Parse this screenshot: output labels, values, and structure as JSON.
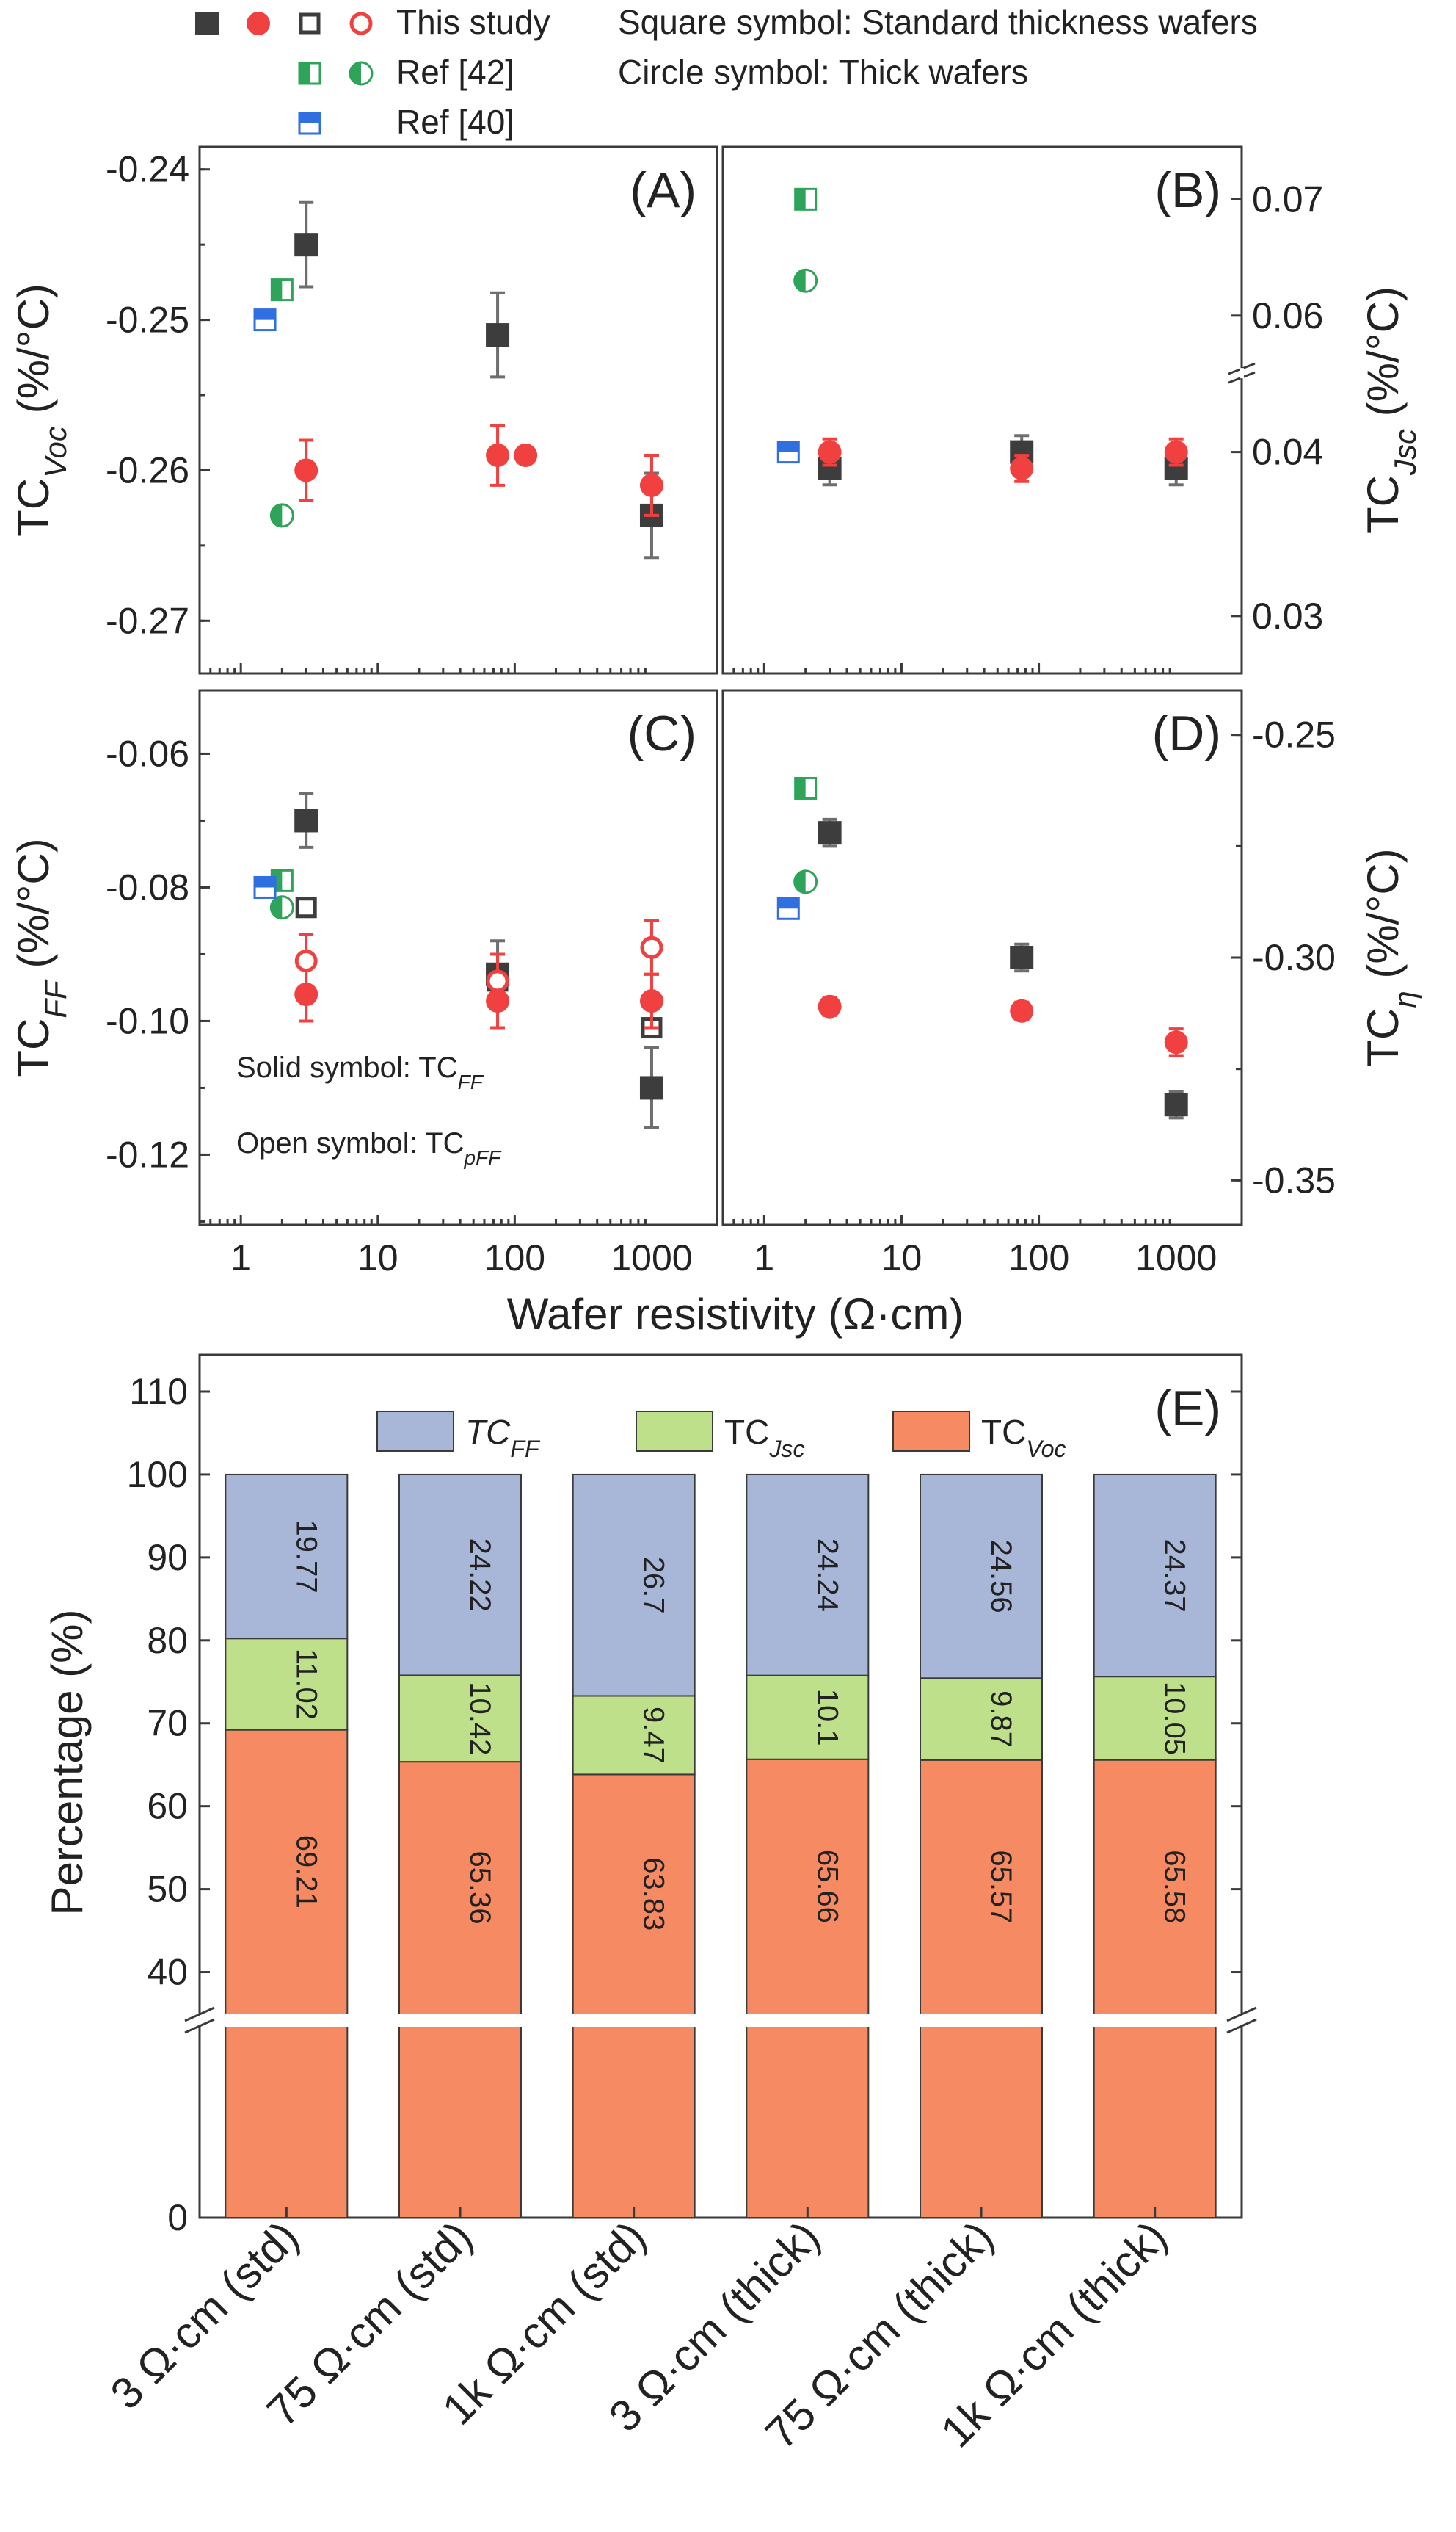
{
  "legend": {
    "this_study": "This study",
    "ref42": "Ref [42]",
    "ref40": "Ref [40]",
    "square_note": "Square symbol: Standard thickness wafers",
    "circle_note": "Circle symbol: Thick wafers",
    "solid_note": {
      "pre": "Solid symbol: TC",
      "sub": "FF"
    },
    "open_note": {
      "pre": "Open symbol: TC",
      "sub": "pFF"
    }
  },
  "colors": {
    "this_study_square": "#3d3d3d",
    "this_study_circle": "#f04040",
    "ref42": "#2ea35a",
    "ref40": "#2f6fe0",
    "bar_ff": "#a8b6d8",
    "bar_jsc": "#bfe08a",
    "bar_voc": "#f68a62"
  },
  "chart_data": [
    {
      "panel": "A",
      "label": "(A)",
      "type": "scatter",
      "ylabel": {
        "pre": "TC",
        "sub": "Voc",
        "post": " (%/°C)"
      },
      "y_side": "left",
      "x_scale": "log",
      "xlim": [
        0.5,
        3000
      ],
      "ylim": [
        -0.2735,
        -0.2385
      ],
      "yticks": [
        -0.27,
        -0.26,
        -0.25,
        -0.24
      ],
      "ytick_labels": [
        "-0.27",
        "-0.26",
        "-0.25",
        "-0.24"
      ],
      "series": [
        {
          "group": "this-study",
          "marker": "square",
          "fill": "solid",
          "points": [
            {
              "x": 3,
              "y": -0.245,
              "err": 0.0028
            },
            {
              "x": 75,
              "y": -0.251,
              "err": 0.0028
            },
            {
              "x": 1000,
              "y": -0.263,
              "err": 0.0028
            }
          ]
        },
        {
          "group": "this-study",
          "marker": "circle",
          "fill": "solid",
          "points": [
            {
              "x": 3,
              "y": -0.26,
              "err": 0.002
            },
            {
              "x": 75,
              "y": -0.259,
              "err": 0.002
            },
            {
              "x": 120,
              "y": -0.259,
              "err": 0
            },
            {
              "x": 1000,
              "y": -0.261,
              "err": 0.002
            }
          ]
        },
        {
          "group": "ref42",
          "marker": "square",
          "fill": "half-left",
          "points": [
            {
              "x": 2,
              "y": -0.248,
              "err": 0
            }
          ]
        },
        {
          "group": "ref42",
          "marker": "circle",
          "fill": "half-left",
          "points": [
            {
              "x": 2,
              "y": -0.263,
              "err": 0
            }
          ]
        },
        {
          "group": "ref40",
          "marker": "square",
          "fill": "half-top",
          "points": [
            {
              "x": 1.5,
              "y": -0.25,
              "err": 0
            }
          ]
        }
      ]
    },
    {
      "panel": "B",
      "label": "(B)",
      "type": "scatter",
      "ylabel": {
        "pre": "TC",
        "sub": "Jsc",
        "post": " (%/°C)"
      },
      "y_side": "right",
      "x_scale": "log",
      "xlim": [
        0.5,
        3000
      ],
      "y_break": true,
      "ylim": [
        0.0265,
        0.0745
      ],
      "yticks": [
        0.03,
        0.04,
        0.06,
        0.07
      ],
      "ytick_labels": [
        "0.03",
        "0.04",
        "0.06",
        "0.07"
      ],
      "series": [
        {
          "group": "this-study",
          "marker": "square",
          "fill": "solid",
          "points": [
            {
              "x": 3,
              "y": 0.039,
              "err": 0.001
            },
            {
              "x": 75,
              "y": 0.04,
              "err": 0.001
            },
            {
              "x": 1000,
              "y": 0.039,
              "err": 0.001
            }
          ]
        },
        {
          "group": "this-study",
          "marker": "circle",
          "fill": "solid",
          "points": [
            {
              "x": 3,
              "y": 0.04,
              "err": 0.0008
            },
            {
              "x": 75,
              "y": 0.039,
              "err": 0.0008
            },
            {
              "x": 1000,
              "y": 0.04,
              "err": 0.0008
            }
          ]
        },
        {
          "group": "ref42",
          "marker": "square",
          "fill": "half-left",
          "points": [
            {
              "x": 2,
              "y": 0.07,
              "err": 0
            }
          ]
        },
        {
          "group": "ref42",
          "marker": "circle",
          "fill": "half-left",
          "points": [
            {
              "x": 2,
              "y": 0.063,
              "err": 0
            }
          ]
        },
        {
          "group": "ref40",
          "marker": "square",
          "fill": "half-top",
          "points": [
            {
              "x": 1.5,
              "y": 0.04,
              "err": 0
            }
          ]
        }
      ]
    },
    {
      "panel": "C",
      "label": "(C)",
      "type": "scatter",
      "ylabel": {
        "pre": "TC",
        "sub": "FF",
        "post": " (%/°C)"
      },
      "y_side": "left",
      "x_scale": "log",
      "xlim": [
        0.5,
        3000
      ],
      "ylim": [
        -0.1305,
        -0.0505
      ],
      "yticks": [
        -0.12,
        -0.1,
        -0.08,
        -0.06
      ],
      "ytick_labels": [
        "-0.12",
        "-0.10",
        "-0.08",
        "-0.06"
      ],
      "series": [
        {
          "group": "this-study",
          "marker": "square",
          "fill": "solid",
          "points": [
            {
              "x": 3,
              "y": -0.07,
              "err": 0.004
            },
            {
              "x": 75,
              "y": -0.093,
              "err": 0.005
            },
            {
              "x": 1000,
              "y": -0.11,
              "err": 0.006
            }
          ]
        },
        {
          "group": "this-study",
          "marker": "square",
          "fill": "open",
          "points": [
            {
              "x": 3,
              "y": -0.083,
              "err": 0.001
            },
            {
              "x": 75,
              "y": -0.094,
              "err": 0.001
            },
            {
              "x": 1000,
              "y": -0.101,
              "err": 0.001
            }
          ]
        },
        {
          "group": "this-study",
          "marker": "circle",
          "fill": "solid",
          "points": [
            {
              "x": 3,
              "y": -0.096,
              "err": 0.004
            },
            {
              "x": 75,
              "y": -0.097,
              "err": 0.004
            },
            {
              "x": 1000,
              "y": -0.097,
              "err": 0.004
            }
          ]
        },
        {
          "group": "this-study",
          "marker": "circle",
          "fill": "open",
          "points": [
            {
              "x": 3,
              "y": -0.091,
              "err": 0.004
            },
            {
              "x": 75,
              "y": -0.094,
              "err": 0.004
            },
            {
              "x": 1000,
              "y": -0.089,
              "err": 0.004
            }
          ]
        },
        {
          "group": "ref42",
          "marker": "square",
          "fill": "half-left",
          "points": [
            {
              "x": 2,
              "y": -0.079,
              "err": 0
            }
          ]
        },
        {
          "group": "ref42",
          "marker": "circle",
          "fill": "half-left",
          "points": [
            {
              "x": 2,
              "y": -0.083,
              "err": 0
            }
          ]
        },
        {
          "group": "ref40",
          "marker": "square",
          "fill": "half-top",
          "points": [
            {
              "x": 1.5,
              "y": -0.08,
              "err": 0
            }
          ]
        }
      ]
    },
    {
      "panel": "D",
      "label": "(D)",
      "type": "scatter",
      "ylabel": {
        "pre": "TC",
        "sub": "η",
        "post": " (%/°C)"
      },
      "y_side": "right",
      "x_scale": "log",
      "xlim": [
        0.5,
        3000
      ],
      "ylim": [
        -0.36,
        -0.24
      ],
      "yticks": [
        -0.35,
        -0.3,
        -0.25
      ],
      "ytick_labels": [
        "-0.35",
        "-0.30",
        "-0.25"
      ],
      "series": [
        {
          "group": "this-study",
          "marker": "square",
          "fill": "solid",
          "points": [
            {
              "x": 3,
              "y": -0.272,
              "err": 0.003
            },
            {
              "x": 75,
              "y": -0.3,
              "err": 0.003
            },
            {
              "x": 1000,
              "y": -0.333,
              "err": 0.003
            }
          ]
        },
        {
          "group": "this-study",
          "marker": "circle",
          "fill": "solid",
          "points": [
            {
              "x": 3,
              "y": -0.311,
              "err": 0.002
            },
            {
              "x": 75,
              "y": -0.312,
              "err": 0.002
            },
            {
              "x": 1000,
              "y": -0.319,
              "err": 0.003
            }
          ]
        },
        {
          "group": "ref42",
          "marker": "square",
          "fill": "half-left",
          "points": [
            {
              "x": 2,
              "y": -0.262,
              "err": 0
            }
          ]
        },
        {
          "group": "ref42",
          "marker": "circle",
          "fill": "half-left",
          "points": [
            {
              "x": 2,
              "y": -0.283,
              "err": 0
            }
          ]
        },
        {
          "group": "ref40",
          "marker": "square",
          "fill": "half-top",
          "points": [
            {
              "x": 1.5,
              "y": -0.289,
              "err": 0
            }
          ]
        }
      ]
    },
    {
      "panel": "E",
      "label": "(E)",
      "type": "bar",
      "stacked": true,
      "y_break": true,
      "ylabel": "Percentage (%)",
      "ylim": [
        0,
        110
      ],
      "yticks": [
        0,
        40,
        50,
        60,
        70,
        80,
        90,
        100,
        110
      ],
      "ytick_labels": [
        "0",
        "40",
        "50",
        "60",
        "70",
        "80",
        "90",
        "100",
        "110"
      ],
      "categories": [
        "3 Ω·cm (std)",
        "75 Ω·cm (std)",
        "1k Ω·cm (std)",
        "3 Ω·cm (thick)",
        "75 Ω·cm (thick)",
        "1k Ω·cm (thick)"
      ],
      "series": [
        {
          "key": "voc",
          "name": {
            "pre": "TC",
            "sub": "Voc"
          },
          "values": [
            69.21,
            65.36,
            63.83,
            65.66,
            65.57,
            65.58
          ],
          "labels": [
            "69.21",
            "65.36",
            "63.83",
            "65.66",
            "65.57",
            "65.58"
          ]
        },
        {
          "key": "jsc",
          "name": {
            "pre": "TC",
            "sub": "Jsc"
          },
          "values": [
            11.02,
            10.42,
            9.47,
            10.1,
            9.87,
            10.05
          ],
          "labels": [
            "11.02",
            "10.42",
            "9.47",
            "10.1",
            "9.87",
            "10.05"
          ]
        },
        {
          "key": "ff",
          "name": {
            "pre": "TC",
            "sub": "FF"
          },
          "values": [
            19.77,
            24.22,
            26.7,
            24.24,
            24.56,
            24.37
          ],
          "labels": [
            "19.77",
            "24.22",
            "26.7",
            "24.24",
            "24.56",
            "24.37"
          ]
        }
      ]
    }
  ],
  "shared_x": {
    "label": "Wafer resistivity (Ω·cm)",
    "ticks": [
      1,
      10,
      100,
      1000
    ],
    "tick_labels": [
      "1",
      "10",
      "100",
      "1000"
    ]
  }
}
